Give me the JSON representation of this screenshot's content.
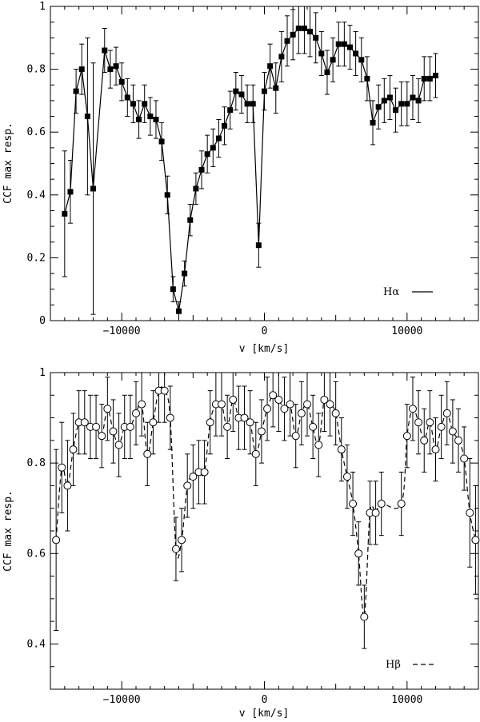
{
  "chart_data": [
    {
      "type": "line",
      "xlabel": "v [km/s]",
      "ylabel": "CCF max resp.",
      "xlim": [
        -15000,
        15000
      ],
      "ylim": [
        0,
        1
      ],
      "x_ticks": [
        -10000,
        0,
        10000
      ],
      "x_tick_labels": [
        "−10000",
        "0",
        "10000"
      ],
      "y_ticks": [
        0,
        0.2,
        0.4,
        0.6,
        0.8,
        1
      ],
      "y_tick_labels": [
        "0",
        "0.2",
        "0.4",
        "0.6",
        "0.8",
        "1"
      ],
      "legend": "bottom-right",
      "series": [
        {
          "name": "Hα",
          "marker": "filled-square",
          "linestyle": "solid",
          "x": [
            -14000,
            -13600,
            -13200,
            -12800,
            -12400,
            -12000,
            -11200,
            -10800,
            -10400,
            -10000,
            -9600,
            -9200,
            -8800,
            -8400,
            -8000,
            -7600,
            -7200,
            -6800,
            -6400,
            -6000,
            -5600,
            -5200,
            -4800,
            -4400,
            -4000,
            -3600,
            -3200,
            -2800,
            -2400,
            -2000,
            -1600,
            -1200,
            -800,
            -400,
            0,
            400,
            800,
            1200,
            1600,
            2000,
            2400,
            2800,
            3200,
            3600,
            4000,
            4400,
            4800,
            5200,
            5600,
            6000,
            6400,
            6800,
            7200,
            7600,
            8000,
            8400,
            8800,
            9200,
            9600,
            10000,
            10400,
            10800,
            11200,
            11600,
            12000
          ],
          "y": [
            0.34,
            0.41,
            0.73,
            0.8,
            0.65,
            0.42,
            0.86,
            0.8,
            0.81,
            0.76,
            0.71,
            0.69,
            0.64,
            0.69,
            0.65,
            0.64,
            0.57,
            0.4,
            0.1,
            0.03,
            0.15,
            0.32,
            0.42,
            0.48,
            0.53,
            0.55,
            0.58,
            0.62,
            0.67,
            0.73,
            0.72,
            0.69,
            0.69,
            0.24,
            0.73,
            0.81,
            0.74,
            0.84,
            0.89,
            0.91,
            0.93,
            0.93,
            0.92,
            0.9,
            0.85,
            0.79,
            0.83,
            0.88,
            0.88,
            0.87,
            0.85,
            0.83,
            0.77,
            0.63,
            0.68,
            0.7,
            0.71,
            0.67,
            0.69,
            0.69,
            0.71,
            0.7,
            0.77,
            0.77,
            0.78
          ],
          "yerr": [
            0.2,
            0.1,
            0.07,
            0.08,
            0.25,
            0.4,
            0.07,
            0.06,
            0.06,
            0.06,
            0.06,
            0.06,
            0.06,
            0.06,
            0.06,
            0.06,
            0.06,
            0.06,
            0.04,
            0.03,
            0.04,
            0.05,
            0.05,
            0.06,
            0.06,
            0.06,
            0.06,
            0.06,
            0.06,
            0.06,
            0.06,
            0.06,
            0.06,
            0.07,
            0.06,
            0.07,
            0.08,
            0.08,
            0.08,
            0.08,
            0.08,
            0.08,
            0.08,
            0.08,
            0.07,
            0.07,
            0.07,
            0.07,
            0.07,
            0.07,
            0.07,
            0.07,
            0.07,
            0.07,
            0.07,
            0.07,
            0.07,
            0.07,
            0.07,
            0.07,
            0.07,
            0.07,
            0.07,
            0.07,
            0.07
          ]
        }
      ]
    },
    {
      "type": "line",
      "xlabel": "v [km/s]",
      "ylabel": "CCF max resp.",
      "xlim": [
        -15000,
        15000
      ],
      "ylim": [
        0.3,
        1
      ],
      "x_ticks": [
        -10000,
        0,
        10000
      ],
      "x_tick_labels": [
        "−10000",
        "0",
        "10000"
      ],
      "y_ticks": [
        0.4,
        0.6,
        0.8,
        1
      ],
      "y_tick_labels": [
        "0.4",
        "0.6",
        "0.8",
        "1"
      ],
      "legend": "bottom-right",
      "series": [
        {
          "name": "Hβ",
          "marker": "open-circle",
          "linestyle": "dashed",
          "x": [
            -14600,
            -14200,
            -13800,
            -13400,
            -13000,
            -12600,
            -12200,
            -11800,
            -11400,
            -11000,
            -10600,
            -10200,
            -9800,
            -9400,
            -9000,
            -8600,
            -8200,
            -7800,
            -7400,
            -7000,
            -6600,
            -6200,
            -5800,
            -5400,
            -5000,
            -4600,
            -4200,
            -3800,
            -3400,
            -3000,
            -2600,
            -2200,
            -1800,
            -1400,
            -1000,
            -600,
            -200,
            200,
            600,
            1000,
            1400,
            1800,
            2200,
            2600,
            3000,
            3400,
            3800,
            4200,
            4600,
            5000,
            5400,
            5800,
            6200,
            6600,
            7000,
            7400,
            7800,
            8200,
            9600,
            10000,
            10400,
            10800,
            11200,
            11600,
            12000,
            12400,
            12800,
            13200,
            13600,
            14000,
            14400,
            14800
          ],
          "y": [
            0.63,
            0.79,
            0.75,
            0.83,
            0.89,
            0.89,
            0.88,
            0.88,
            0.86,
            0.92,
            0.87,
            0.84,
            0.88,
            0.88,
            0.91,
            0.93,
            0.82,
            0.89,
            0.96,
            0.96,
            0.9,
            0.61,
            0.63,
            0.75,
            0.77,
            0.78,
            0.78,
            0.89,
            0.93,
            0.93,
            0.88,
            0.94,
            0.9,
            0.9,
            0.89,
            0.82,
            0.87,
            0.92,
            0.95,
            0.94,
            0.92,
            0.93,
            0.86,
            0.91,
            0.93,
            0.88,
            0.84,
            0.94,
            0.93,
            0.91,
            0.83,
            0.77,
            0.71,
            0.6,
            0.46,
            0.69,
            0.69,
            0.71,
            0.71,
            0.86,
            0.92,
            0.89,
            0.85,
            0.89,
            0.83,
            0.88,
            0.91,
            0.87,
            0.85,
            0.81,
            0.69,
            0.63
          ],
          "yerr": [
            0.2,
            0.1,
            0.1,
            0.08,
            0.07,
            0.07,
            0.07,
            0.07,
            0.07,
            0.07,
            0.07,
            0.07,
            0.07,
            0.07,
            0.07,
            0.07,
            0.07,
            0.07,
            0.07,
            0.07,
            0.07,
            0.07,
            0.07,
            0.07,
            0.07,
            0.07,
            0.07,
            0.07,
            0.07,
            0.07,
            0.07,
            0.07,
            0.07,
            0.07,
            0.07,
            0.07,
            0.07,
            0.07,
            0.07,
            0.07,
            0.07,
            0.07,
            0.07,
            0.07,
            0.07,
            0.07,
            0.07,
            0.07,
            0.07,
            0.07,
            0.07,
            0.07,
            0.07,
            0.07,
            0.07,
            0.07,
            0.07,
            0.07,
            0.07,
            0.07,
            0.07,
            0.07,
            0.07,
            0.07,
            0.07,
            0.07,
            0.07,
            0.07,
            0.07,
            0.07,
            0.12,
            0.12
          ]
        }
      ]
    }
  ]
}
